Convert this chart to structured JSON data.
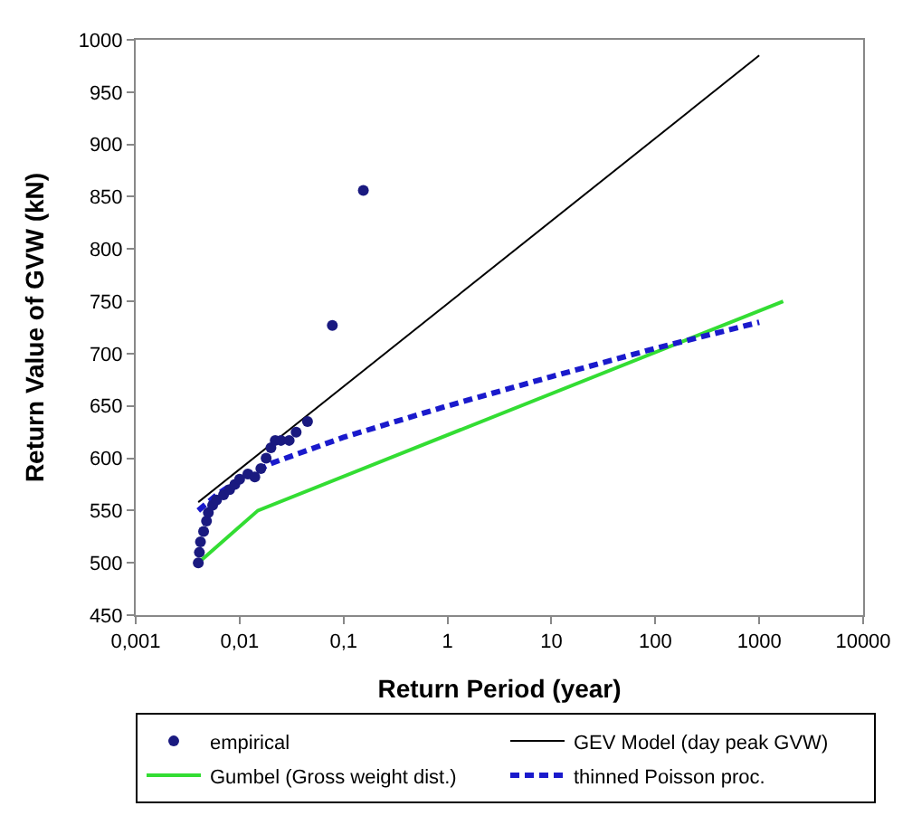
{
  "chart_data": {
    "type": "line",
    "xlabel": "Return Period (year)",
    "ylabel": "Return Value of GVW (kN)",
    "log": "x",
    "xlim": [
      0.001,
      10000
    ],
    "ylim": [
      450,
      1000
    ],
    "xticks": [
      {
        "value": 0.001,
        "label": "0,001"
      },
      {
        "value": 0.01,
        "label": "0,01"
      },
      {
        "value": 0.1,
        "label": "0,1"
      },
      1,
      10,
      100,
      1000,
      10000
    ],
    "yticks": [
      450,
      500,
      550,
      600,
      650,
      700,
      750,
      800,
      850,
      900,
      950,
      1000
    ],
    "legend": "bottom",
    "series": [
      {
        "name": "empirical",
        "type": "scatter",
        "marker": "circle",
        "color": "#1a1a80",
        "x": [
          0.004,
          0.0041,
          0.0042,
          0.0045,
          0.0048,
          0.005,
          0.0055,
          0.006,
          0.007,
          0.008,
          0.009,
          0.01,
          0.012,
          0.014,
          0.016,
          0.018,
          0.02,
          0.022,
          0.025,
          0.03,
          0.035,
          0.045,
          0.078,
          0.155
        ],
        "values": [
          500,
          510,
          520,
          530,
          540,
          548,
          555,
          560,
          565,
          570,
          575,
          580,
          585,
          582,
          590,
          600,
          610,
          617,
          617,
          617,
          625,
          635,
          727,
          856
        ]
      },
      {
        "name": "GEV Model (day peak GVW)",
        "line_style": "solid",
        "color": "#000000",
        "x": [
          0.004,
          1000
        ],
        "values": [
          558,
          985
        ]
      },
      {
        "name": "Gumbel (Gross weight dist.)",
        "line_style": "solid",
        "color": "#33dd33",
        "x": [
          0.004,
          0.015,
          1700
        ],
        "values": [
          500,
          550,
          750
        ]
      },
      {
        "name": "thinned Poisson proc.",
        "line_style": "dashed",
        "color": "#1a1acc",
        "x": [
          0.004,
          0.006,
          0.01,
          0.02,
          0.1,
          1,
          10,
          100,
          1000
        ],
        "values": [
          550,
          565,
          580,
          595,
          620,
          650,
          678,
          705,
          730
        ]
      }
    ]
  }
}
